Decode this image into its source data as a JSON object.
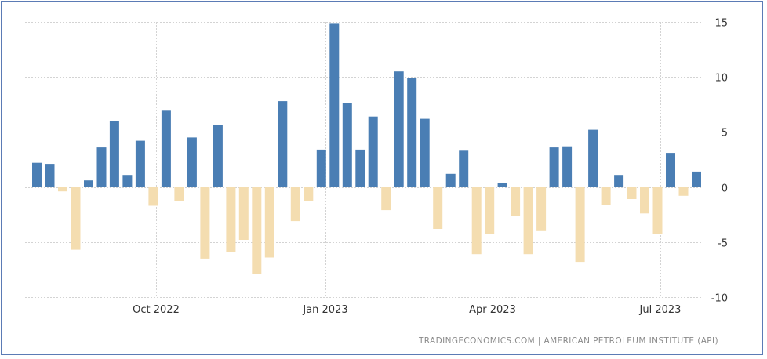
{
  "source": "TRADINGECONOMICS.COM  |  AMERICAN PETROLEUM INSTITUTE (API)",
  "colors": {
    "positive": "#4a7eb4",
    "negative": "#f4ddb0",
    "grid": "#d3d3d3",
    "text": "#333333",
    "frame": "#5b7bb5"
  },
  "chart_data": {
    "type": "bar",
    "xlabel": "",
    "ylabel": "",
    "ylim": [
      -10,
      15
    ],
    "yticks": [
      15,
      10,
      5,
      0,
      -5,
      -10
    ],
    "y_axis_side": "right",
    "grid": true,
    "x_tick_labels": [
      "Oct 2022",
      "Jan 2023",
      "Apr 2023",
      "Jul 2023"
    ],
    "values": [
      2.2,
      2.1,
      -0.4,
      -5.7,
      0.6,
      3.6,
      6.0,
      1.1,
      4.2,
      -1.7,
      7.0,
      -1.3,
      4.5,
      -6.5,
      5.6,
      -5.9,
      -4.8,
      -7.9,
      -6.4,
      7.8,
      -3.1,
      -1.3,
      3.4,
      14.9,
      7.6,
      3.4,
      6.4,
      -2.1,
      10.5,
      9.9,
      6.2,
      -3.8,
      1.2,
      3.3,
      -6.1,
      -4.3,
      0.4,
      -2.6,
      -6.1,
      -4.0,
      3.6,
      3.7,
      -6.8,
      5.2,
      -1.6,
      1.1,
      -1.1,
      -2.4,
      -4.3,
      3.1,
      -0.8,
      1.4
    ]
  }
}
